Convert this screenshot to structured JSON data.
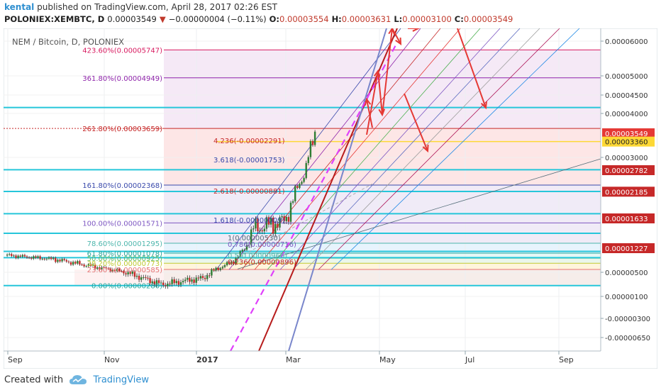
{
  "header": {
    "author": "kental",
    "published_text": "published on TradingView.com, April 28, 2017 02:26 EST",
    "symbol": "POLONIEX:XEMBTC, D",
    "last": "0.00003549",
    "change": "−0.00000004 (−0.11%)",
    "o_label": "O:",
    "o_value": "0.00003554",
    "h_label": "H:",
    "h_value": "0.00003631",
    "l_label": "L:",
    "l_value": "0.00003100",
    "c_label": "C:",
    "c_value": "0.00003549"
  },
  "chart_title": "NEM / Bitcoin, D, POLONIEX",
  "footer": {
    "created_with": "Created with",
    "brand": "TradingView"
  },
  "chart_data": {
    "type": "line",
    "price_axis_labels": [
      {
        "label": "0.00006000",
        "value": 6e-05
      },
      {
        "label": "0.00005000",
        "value": 5e-05
      },
      {
        "label": "0.00004500",
        "value": 4.5e-05
      },
      {
        "label": "0.00004000",
        "value": 4e-05
      },
      {
        "label": "0.00003000",
        "value": 3e-05
      },
      {
        "label": "0.00000500",
        "value": 5e-06
      },
      {
        "label": "0.00000100",
        "value": 1e-06
      },
      {
        "label": "-0.00000300",
        "value": -3e-06
      },
      {
        "label": "-0.00000650",
        "value": -6.5e-06
      }
    ],
    "price_tags": [
      {
        "label": "0.00003549",
        "value": 3.549e-05,
        "color": "#e53935"
      },
      {
        "label": "0.00003360",
        "value": 3.36e-05,
        "color": "#fdd835"
      },
      {
        "label": "0.00002782",
        "value": 2.782e-05,
        "color": "#c62828"
      },
      {
        "label": "0.00002185",
        "value": 2.185e-05,
        "color": "#c62828"
      },
      {
        "label": "0.00001633",
        "value": 1.633e-05,
        "color": "#c62828"
      },
      {
        "label": "0.00001227",
        "value": 1.227e-05,
        "color": "#c62828"
      }
    ],
    "time_axis_labels": [
      "Sep",
      "Nov",
      "2017",
      "Mar",
      "May",
      "Jul",
      "Sep"
    ],
    "fib_retracement": [
      {
        "label": "0.00%(0.00000280)",
        "value": 2.8e-06
      },
      {
        "label": "23.60%(0.00000585)",
        "value": 5.85e-06
      },
      {
        "label": "38.20%(0.00000773)",
        "value": 7.73e-06
      },
      {
        "label": "50.00%(0.00000925)",
        "value": 9.25e-06
      },
      {
        "label": "61.80%(0.00001078)",
        "value": 1.078e-05
      },
      {
        "label": "78.60%(0.00001295)",
        "value": 1.295e-05
      },
      {
        "label": "100.00%(0.00001571)",
        "value": 1.571e-05
      },
      {
        "label": "161.80%(0.00002368)",
        "value": 2.368e-05
      },
      {
        "label": "261.80%(0.00003659)",
        "value": 3.659e-05
      },
      {
        "label": "361.80%(0.00004949)",
        "value": 4.949e-05
      },
      {
        "label": "423.60%(0.00005747)",
        "value": 5.747e-05
      }
    ],
    "fib_extension": [
      {
        "label": "0.236(0.00000896)",
        "value": 8.96e-06
      },
      {
        "label": "0.5(0.00000966)",
        "value": 9.66e-06
      },
      {
        "label": "0.786(0.00000716)",
        "value": 7.16e-06
      },
      {
        "label": "1(0.00000530)",
        "value": 5.3e-06
      },
      {
        "label": "1.618(-0.00000009)",
        "value": -9e-08
      },
      {
        "label": "2.618(-0.00000881)",
        "value": -8.81e-06
      },
      {
        "label": "3.618(-0.00001753)",
        "value": -1.753e-05
      },
      {
        "label": "4.236(-0.00002291)",
        "value": -2.291e-05
      }
    ],
    "cyan_levels": [
      4.16e-05,
      2.79e-05,
      2.19e-05,
      1.73e-05,
      1.43e-05,
      1.13e-05,
      9.4e-06,
      2.8e-06
    ],
    "colors": {
      "up": "#2e7d32",
      "down": "#c62828",
      "cyan": "#26c6da",
      "magenta": "#e040fb",
      "red_arrow": "#e53935"
    }
  }
}
